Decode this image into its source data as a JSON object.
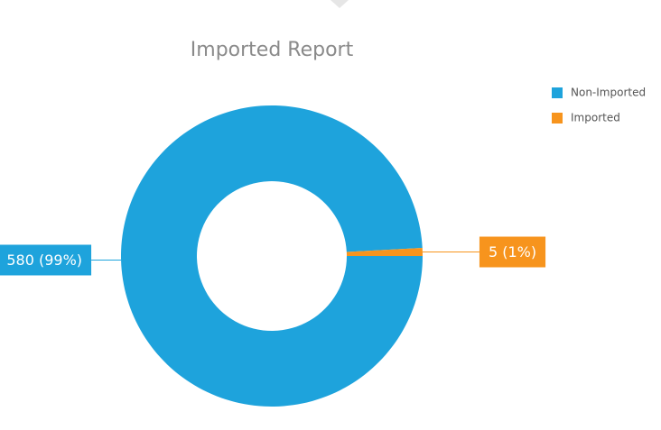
{
  "chart_data": {
    "type": "donut",
    "title": "Imported Report",
    "categories": [
      "Non-Imported",
      "Imported"
    ],
    "values": [
      580,
      5
    ],
    "value_labels": [
      "580 (99%)",
      "5 (1%)"
    ],
    "colors": [
      "#1ea3dc",
      "#f7941d"
    ],
    "legend": "top-right"
  }
}
